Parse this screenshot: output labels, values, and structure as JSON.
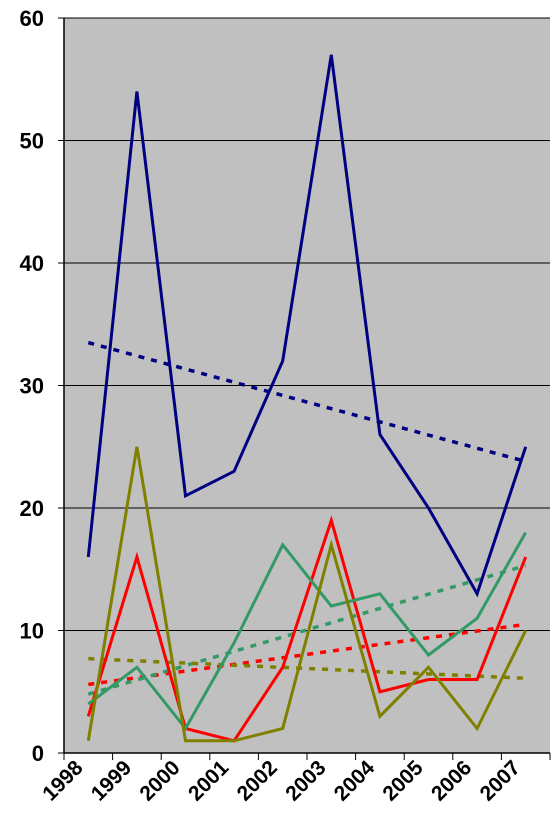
{
  "chart_data": {
    "type": "line",
    "title": "",
    "xlabel": "",
    "ylabel": "",
    "ylim": [
      0,
      60
    ],
    "yticks": [
      "0",
      "10",
      "20",
      "30",
      "40",
      "50",
      "60"
    ],
    "categories": [
      "1998",
      "1999",
      "2000",
      "2001",
      "2002",
      "2003",
      "2004",
      "2005",
      "2006",
      "2007"
    ],
    "grid": true,
    "plot_background": "#c0c0c0",
    "series": [
      {
        "color": "#000080",
        "values": [
          16,
          54,
          21,
          23,
          32,
          57,
          26,
          20,
          13,
          25
        ]
      },
      {
        "color": "#ff0000",
        "values": [
          3,
          16,
          2,
          1,
          7,
          19,
          5,
          6,
          6,
          16
        ]
      },
      {
        "color": "#339966",
        "values": [
          4,
          7,
          2,
          9,
          17,
          12,
          13,
          8,
          11,
          18
        ]
      },
      {
        "color": "#808000",
        "values": [
          1,
          25,
          1,
          1,
          2,
          17,
          3,
          7,
          2,
          10
        ]
      }
    ],
    "trendlines": [
      {
        "color": "#000080",
        "style": "dotted",
        "start": 33.5,
        "end": 23.8
      },
      {
        "color": "#ff0000",
        "style": "dotted",
        "start": 5.6,
        "end": 10.5
      },
      {
        "color": "#339966",
        "style": "dotted",
        "start": 4.8,
        "end": 15.3
      },
      {
        "color": "#808000",
        "style": "dotted",
        "start": 7.7,
        "end": 6.1
      }
    ]
  }
}
